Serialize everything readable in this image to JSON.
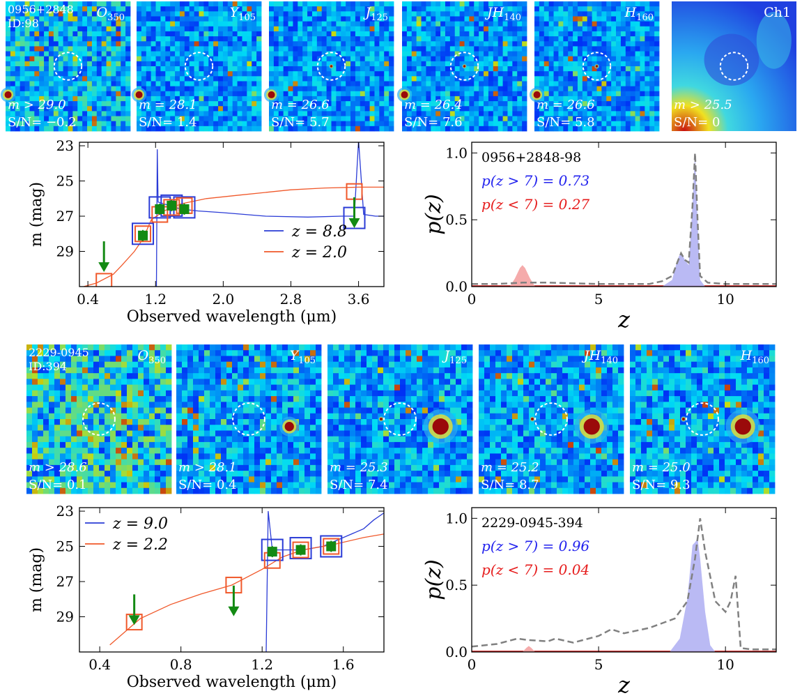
{
  "colors": {
    "blue": "#2a3bd6",
    "orange": "#f0582a",
    "green": "#138a13",
    "gray": "#808080",
    "redfill": "#f4a2a2",
    "bluefill": "#b3b3f3",
    "ptext_blue": "#2222ee",
    "ptext_red": "#e61c1c",
    "stamp_bg": "#0a1e96"
  },
  "row1_stamps": [
    {
      "band": "O",
      "sub": "350",
      "label1": "0956+2848",
      "label2": "ID:98",
      "mag": "m > 29.0",
      "sn": "S/N= −0.2"
    },
    {
      "band": "Y",
      "sub": "105",
      "mag": "m = 28.1",
      "sn": "S/N= 1.4"
    },
    {
      "band": "J",
      "sub": "125",
      "mag": "m = 26.6",
      "sn": "S/N= 5.7"
    },
    {
      "band": "JH",
      "sub": "140",
      "mag": "m = 26.4",
      "sn": "S/N= 7.6"
    },
    {
      "band": "H",
      "sub": "160",
      "mag": "m = 26.6",
      "sn": "S/N= 5.8"
    },
    {
      "band": "Ch1",
      "sub": "",
      "mag": "m > 25.5",
      "sn": "S/N= 0"
    }
  ],
  "row2_stamps": [
    {
      "band": "O",
      "sub": "350",
      "label1": "2229-0945",
      "label2": "ID:394",
      "mag": "m > 28.6",
      "sn": "S/N= 0.1"
    },
    {
      "band": "Y",
      "sub": "105",
      "mag": "m > 28.1",
      "sn": "S/N= 0.4"
    },
    {
      "band": "J",
      "sub": "125",
      "mag": "m = 25.3",
      "sn": "S/N= 7.4"
    },
    {
      "band": "JH",
      "sub": "140",
      "mag": "m = 25.2",
      "sn": "S/N= 8.7"
    },
    {
      "band": "H",
      "sub": "160",
      "mag": "m = 25.0",
      "sn": "S/N= 9.3"
    }
  ],
  "chart_data": [
    {
      "type": "line",
      "title": "",
      "xlabel": "Observed wavelength (μm)",
      "ylabel": "m (mag)",
      "xlim": [
        0.3,
        3.9
      ],
      "ylim": [
        31,
        22.8
      ],
      "xticks": [
        "0.4",
        "1.2",
        "2.0",
        "2.8",
        "3.6"
      ],
      "yticks": [
        "23",
        "25",
        "27",
        "29"
      ],
      "legend": [
        "z = 8.8",
        "z = 2.0"
      ],
      "legend_position": "bottom-right",
      "series": [
        {
          "name": "z = 8.8",
          "color": "blue",
          "kind": "model_sed",
          "x": [
            1.21,
            1.22,
            1.23,
            1.3,
            1.5,
            1.7,
            2.0,
            2.5,
            3.0,
            3.4,
            3.55,
            3.6,
            3.66,
            3.8,
            3.9
          ],
          "y": [
            31,
            23.2,
            26.2,
            26.3,
            26.6,
            26.7,
            26.8,
            27.0,
            27.05,
            27.0,
            27.0,
            22.7,
            26.9,
            27.0,
            27.0
          ]
        },
        {
          "name": "z = 2.0",
          "color": "orange",
          "kind": "model_sed",
          "x": [
            0.35,
            0.5,
            0.7,
            0.8,
            0.95,
            1.05,
            1.15,
            1.3,
            1.5,
            1.8,
            2.2,
            2.8,
            3.2,
            3.6,
            3.9
          ],
          "y": [
            31,
            30.8,
            30.3,
            29.8,
            29.0,
            28.3,
            27.2,
            26.7,
            26.3,
            26.0,
            25.8,
            25.5,
            25.4,
            25.35,
            25.35
          ]
        },
        {
          "name": "observed",
          "color": "green",
          "kind": "photometry",
          "x": [
            1.05,
            1.25,
            1.39,
            1.54
          ],
          "y": [
            28.1,
            26.6,
            26.4,
            26.6
          ]
        },
        {
          "name": "upper limits",
          "color": "green",
          "kind": "upper_limit",
          "x": [
            0.59,
            3.55
          ],
          "y": [
            29.3,
            26.8
          ]
        },
        {
          "name": "z = 8.8 synthetic",
          "color": "blue",
          "kind": "model_photometry",
          "x": [
            1.05,
            1.25,
            1.39,
            1.54,
            3.55
          ],
          "y": [
            28.0,
            26.5,
            26.4,
            26.5,
            27.1
          ]
        },
        {
          "name": "z = 2.0 synthetic",
          "color": "orange",
          "kind": "model_photometry",
          "x": [
            0.59,
            1.05,
            1.25,
            1.39,
            1.54,
            3.55
          ],
          "y": [
            30.7,
            28.0,
            26.9,
            26.5,
            26.4,
            25.6
          ]
        }
      ]
    },
    {
      "type": "area",
      "title": "",
      "xlabel": "z",
      "ylabel": "p(z)",
      "xlim": [
        0,
        12
      ],
      "ylim": [
        0,
        1.08
      ],
      "xticks": [
        "0",
        "5",
        "10"
      ],
      "yticks": [
        "0.0",
        "0.5",
        "1.0"
      ],
      "annotations": {
        "id": "0956+2848-98",
        "hi": "p(z > 7) = 0.73",
        "lo": "p(z < 7) = 0.27"
      },
      "series": [
        {
          "name": "low-z",
          "color": "redfill",
          "x": [
            1.5,
            1.7,
            1.9,
            2.0,
            2.1,
            2.3,
            2.5
          ],
          "y": [
            0,
            0.06,
            0.14,
            0.16,
            0.14,
            0.06,
            0
          ]
        },
        {
          "name": "high-z",
          "color": "bluefill",
          "x": [
            7.5,
            7.9,
            8.1,
            8.25,
            8.4,
            8.55,
            8.7,
            8.8,
            8.9,
            9.0,
            9.2
          ],
          "y": [
            0,
            0.05,
            0.2,
            0.26,
            0.2,
            0.16,
            0.6,
            1.0,
            0.5,
            0.05,
            0
          ]
        },
        {
          "name": "dashed",
          "color": "gray",
          "x": [
            0,
            1,
            2,
            3,
            5,
            7,
            7.5,
            7.9,
            8.1,
            8.25,
            8.4,
            8.55,
            8.7,
            8.8,
            8.9,
            9.0,
            9.3,
            10,
            11,
            12
          ],
          "y": [
            0.02,
            0.02,
            0.03,
            0.03,
            0.02,
            0.02,
            0.04,
            0.08,
            0.18,
            0.25,
            0.2,
            0.18,
            0.6,
            1.0,
            0.5,
            0.08,
            0.03,
            0.02,
            0.02,
            0.02
          ]
        }
      ]
    },
    {
      "type": "line",
      "title": "",
      "xlabel": "Observed wavelength (μm)",
      "ylabel": "m (mag)",
      "xlim": [
        0.3,
        1.8
      ],
      "ylim": [
        31,
        22.8
      ],
      "xticks": [
        "0.4",
        "0.8",
        "1.2",
        "1.6"
      ],
      "yticks": [
        "23",
        "25",
        "27",
        "29"
      ],
      "legend": [
        "z = 9.0",
        "z = 2.2"
      ],
      "legend_position": "top-left",
      "series": [
        {
          "name": "z = 9.0",
          "color": "blue",
          "kind": "model_sed",
          "x": [
            1.22,
            1.23,
            1.25,
            1.3,
            1.4,
            1.5,
            1.6,
            1.7,
            1.75,
            1.8
          ],
          "y": [
            31,
            23.0,
            25.2,
            25.2,
            25.2,
            25.0,
            24.5,
            24.0,
            23.5,
            23.1
          ]
        },
        {
          "name": "z = 2.2",
          "color": "orange",
          "kind": "model_sed",
          "x": [
            0.45,
            0.6,
            0.75,
            0.9,
            1.05,
            1.2,
            1.3,
            1.4,
            1.55,
            1.7,
            1.8
          ],
          "y": [
            30.6,
            29.1,
            28.3,
            27.7,
            27.2,
            26.3,
            25.6,
            25.2,
            24.9,
            24.5,
            24.3
          ]
        },
        {
          "name": "observed",
          "color": "green",
          "kind": "photometry",
          "x": [
            1.25,
            1.39,
            1.54
          ],
          "y": [
            25.3,
            25.2,
            25.0
          ]
        },
        {
          "name": "upper limits",
          "color": "green",
          "kind": "upper_limit",
          "x": [
            0.57,
            1.06
          ],
          "y": [
            28.6,
            28.1
          ]
        },
        {
          "name": "z = 9.0 synthetic",
          "color": "blue",
          "kind": "model_photometry",
          "x": [
            1.25,
            1.39,
            1.54
          ],
          "y": [
            25.2,
            25.1,
            25.0
          ]
        },
        {
          "name": "z = 2.2 synthetic",
          "color": "orange",
          "kind": "model_photometry",
          "x": [
            0.57,
            1.06,
            1.25,
            1.39,
            1.54
          ],
          "y": [
            29.3,
            27.2,
            25.8,
            25.2,
            25.0
          ]
        }
      ]
    },
    {
      "type": "area",
      "title": "",
      "xlabel": "z",
      "ylabel": "p(z)",
      "xlim": [
        0,
        12
      ],
      "ylim": [
        0,
        1.08
      ],
      "xticks": [
        "0",
        "5",
        "10"
      ],
      "yticks": [
        "0.0",
        "0.5",
        "1.0"
      ],
      "annotations": {
        "id": "2229-0945-394",
        "hi": "p(z > 7) = 0.96",
        "lo": "p(z < 7) = 0.04"
      },
      "series": [
        {
          "name": "low-z",
          "color": "redfill",
          "x": [
            2.0,
            2.15,
            2.25,
            2.35,
            2.5
          ],
          "y": [
            0,
            0.03,
            0.045,
            0.03,
            0
          ]
        },
        {
          "name": "high-z",
          "color": "bluefill",
          "x": [
            7.8,
            8.2,
            8.5,
            8.7,
            8.8,
            8.9,
            9.0,
            9.1,
            9.2,
            9.4,
            9.6
          ],
          "y": [
            0,
            0.1,
            0.4,
            0.8,
            0.82,
            0.85,
            0.7,
            0.5,
            0.3,
            0.05,
            0
          ]
        },
        {
          "name": "dashed",
          "color": "gray",
          "x": [
            0,
            1,
            1.8,
            2.2,
            3,
            3.3,
            4,
            5,
            5.5,
            6,
            7,
            8,
            8.5,
            8.8,
            9,
            9.2,
            9.6,
            10,
            10.2,
            10.4,
            10.6,
            11,
            12
          ],
          "y": [
            0.04,
            0.06,
            0.1,
            0.09,
            0.08,
            0.1,
            0.07,
            0.12,
            0.17,
            0.14,
            0.18,
            0.25,
            0.38,
            0.7,
            1.0,
            0.75,
            0.38,
            0.3,
            0.38,
            0.57,
            0.03,
            0.02,
            0.02
          ]
        }
      ]
    }
  ]
}
